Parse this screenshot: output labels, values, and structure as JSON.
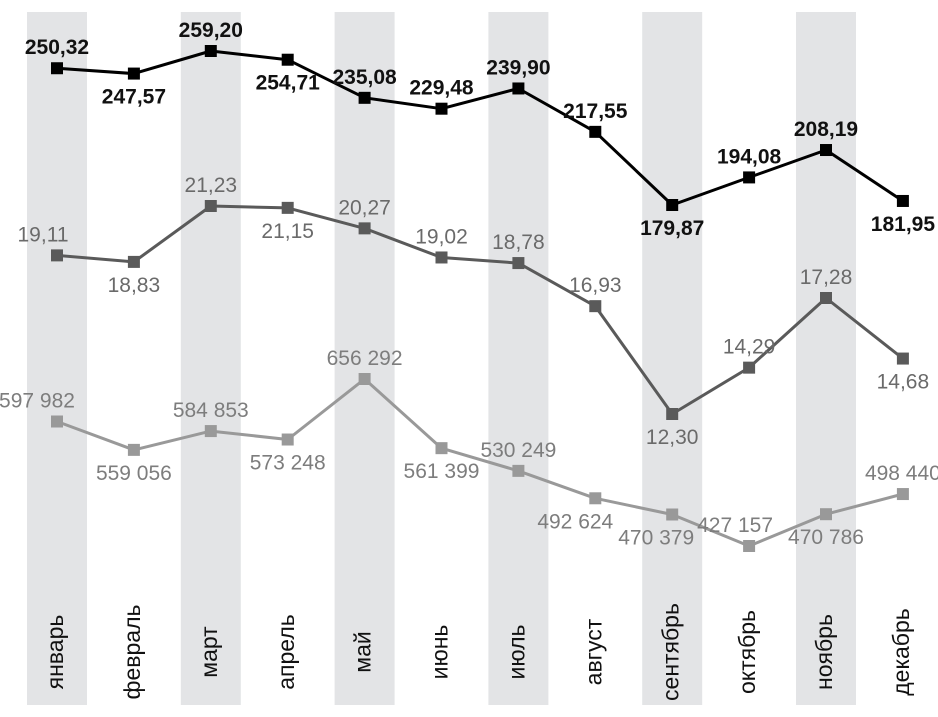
{
  "chart_data": {
    "type": "line",
    "title": "",
    "xlabel": "",
    "ylabel": "",
    "grid": "alternating-column-shading",
    "legend": "none",
    "categories": [
      "январь",
      "февраль",
      "март",
      "апрель",
      "май",
      "июнь",
      "июль",
      "август",
      "сентябрь",
      "октябрь",
      "ноябрь",
      "декабрь"
    ],
    "series": [
      {
        "color": "#000000",
        "values": [
          250.32,
          247.57,
          259.2,
          254.71,
          235.08,
          229.48,
          239.9,
          217.55,
          179.87,
          194.08,
          208.19,
          181.95
        ],
        "labels": [
          "250,32",
          "247,57",
          "259,20",
          "254,71",
          "235,08",
          "229,48",
          "239,90",
          "217,55",
          "179,87",
          "194,08",
          "208,19",
          "181,95"
        ]
      },
      {
        "color": "#5a5a5a",
        "values": [
          19.11,
          18.83,
          21.23,
          21.15,
          20.27,
          19.02,
          18.78,
          16.93,
          12.3,
          14.29,
          17.28,
          14.68
        ],
        "labels": [
          "19,11",
          "18,83",
          "21,23",
          "21,15",
          "20,27",
          "19,02",
          "18,78",
          "16,93",
          "12,30",
          "14,29",
          "17,28",
          "14,68"
        ]
      },
      {
        "color": "#999999",
        "values": [
          597982,
          559056,
          584853,
          573248,
          656292,
          561399,
          530249,
          492624,
          470379,
          427157,
          470786,
          498440
        ],
        "labels": [
          "597 982",
          "559 056",
          "584 853",
          "573 248",
          "656 292",
          "561 399",
          "530 249",
          "492 624",
          "470 379",
          "427 157",
          "470 786",
          "498 440"
        ]
      }
    ],
    "column_shade_color": "#e3e4e6"
  }
}
